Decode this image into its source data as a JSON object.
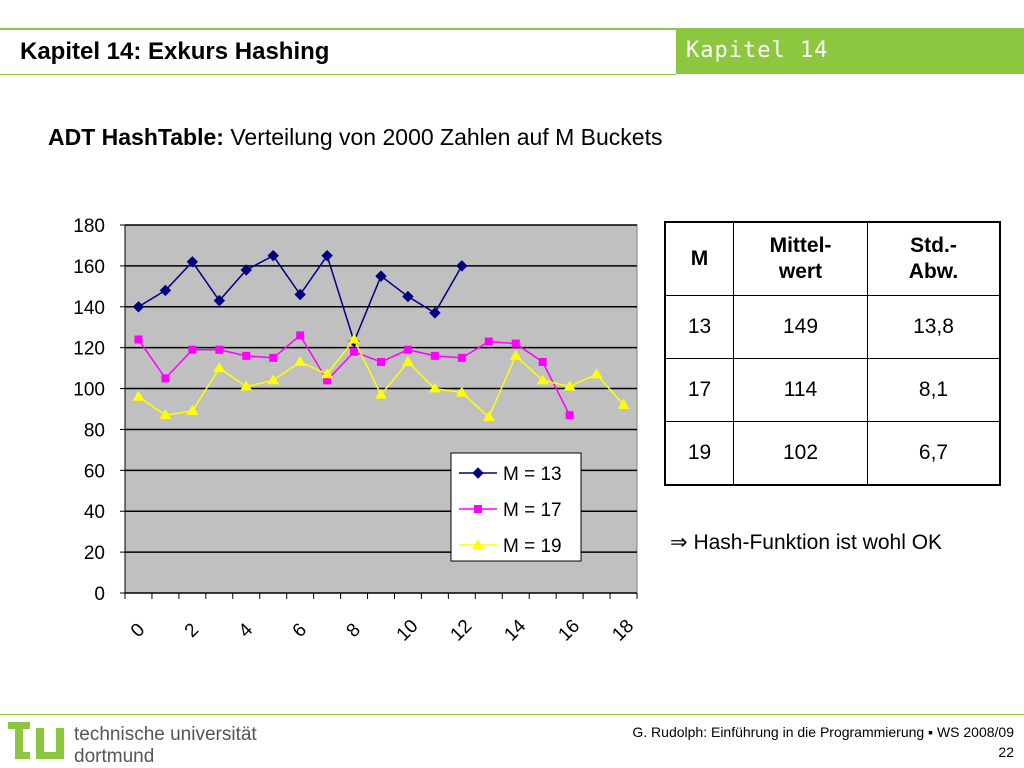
{
  "header": {
    "title": "Kapitel 14: Exkurs Hashing",
    "chapter_tag": "Kapitel 14"
  },
  "subtitle": {
    "bold": "ADT HashTable:",
    "rest": "Verteilung von 2000 Zahlen auf M Buckets"
  },
  "chart_data": {
    "type": "line",
    "title": "",
    "xlabel": "",
    "ylabel": "",
    "ylim": [
      0,
      180
    ],
    "yticks": [
      "0",
      "20",
      "40",
      "60",
      "80",
      "100",
      "120",
      "140",
      "160",
      "180"
    ],
    "xticks": [
      "0",
      "2",
      "4",
      "6",
      "8",
      "10",
      "12",
      "14",
      "16",
      "18"
    ],
    "xlim": [
      0,
      19
    ],
    "grid": true,
    "legend": "bottom-right",
    "plot_background": "#c0c0c0",
    "series": [
      {
        "name": "M = 13",
        "color": "#000080",
        "marker": "diamond",
        "values": [
          140,
          148,
          162,
          143,
          158,
          165,
          146,
          165,
          123,
          155,
          145,
          137,
          160
        ]
      },
      {
        "name": "M = 17",
        "color": "#ff00ff",
        "marker": "square",
        "values": [
          124,
          105,
          119,
          119,
          116,
          115,
          126,
          104,
          118,
          113,
          119,
          116,
          115,
          123,
          122,
          113,
          87
        ]
      },
      {
        "name": "M = 19",
        "color": "#ffff00",
        "marker": "triangle",
        "values": [
          96,
          87,
          89,
          110,
          101,
          104,
          113,
          107,
          124,
          97,
          113,
          100,
          98,
          86,
          116,
          104,
          101,
          107,
          92
        ]
      }
    ]
  },
  "table": {
    "headers": [
      [
        "M"
      ],
      [
        "Mittel-",
        "wert"
      ],
      [
        "Std.-",
        "Abw."
      ]
    ],
    "rows": [
      [
        "13",
        "149",
        "13,8"
      ],
      [
        "17",
        "114",
        "8,1"
      ],
      [
        "19",
        "102",
        "6,7"
      ]
    ]
  },
  "conclusion": {
    "symbol": "⇒",
    "text": "Hash-Funktion ist wohl OK"
  },
  "footer": {
    "line1": "G. Rudolph: Einführung in die Programmierung ▪ WS 2008/09",
    "page": "22"
  },
  "logo": {
    "name_line1": "technische universität",
    "name_line2": "dortmund",
    "color": "#8dc63f"
  }
}
